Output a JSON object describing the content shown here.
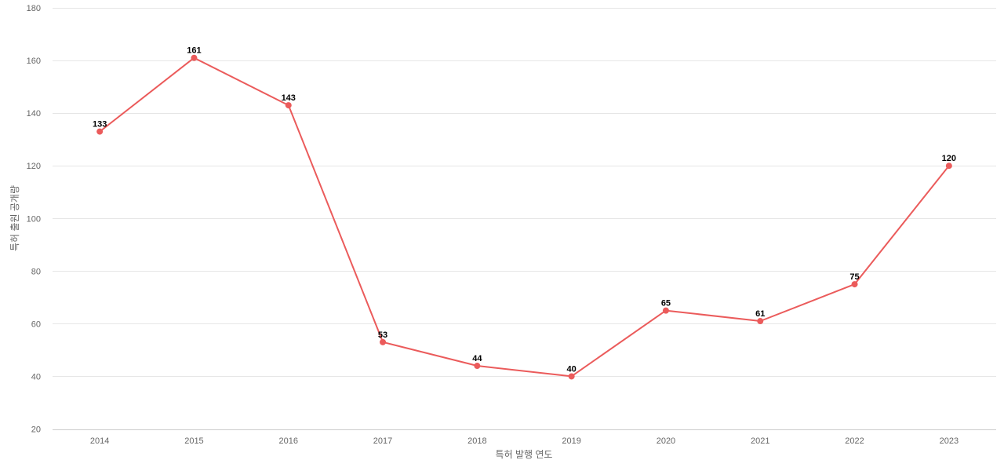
{
  "chart_data": {
    "type": "line",
    "xlabel": "특허 발행 연도",
    "ylabel": "특허 출원 공개량",
    "categories": [
      "2014",
      "2015",
      "2016",
      "2017",
      "2018",
      "2019",
      "2020",
      "2021",
      "2022",
      "2023"
    ],
    "series": [
      {
        "values": [
          133,
          161,
          143,
          53,
          44,
          40,
          65,
          61,
          75,
          120
        ],
        "color": "#eb5b5b"
      }
    ],
    "ylim": [
      20,
      180
    ],
    "yticks": [
      20,
      40,
      60,
      80,
      100,
      120,
      140,
      160,
      180
    ],
    "grid": true,
    "legend": "none",
    "data_labels": true
  }
}
